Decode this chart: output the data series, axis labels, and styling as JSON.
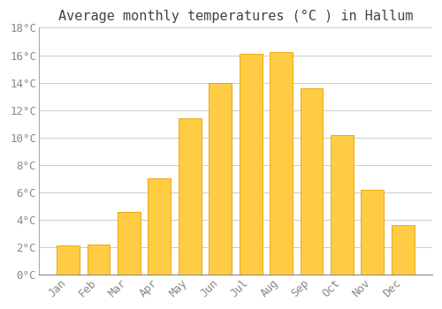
{
  "title": "Average monthly temperatures (°C ) in Hallum",
  "months": [
    "Jan",
    "Feb",
    "Mar",
    "Apr",
    "May",
    "Jun",
    "Jul",
    "Aug",
    "Sep",
    "Oct",
    "Nov",
    "Dec"
  ],
  "temperatures": [
    2.1,
    2.2,
    4.6,
    7.0,
    11.4,
    14.0,
    16.1,
    16.2,
    13.6,
    10.2,
    6.2,
    3.6
  ],
  "bar_color_light": "#FFCC44",
  "bar_color_dark": "#E8A000",
  "background_color": "#FFFFFF",
  "plot_bg_color": "#FFFFFF",
  "grid_color": "#CCCCCC",
  "tick_label_color": "#888888",
  "title_color": "#444444",
  "ylim": [
    0,
    18
  ],
  "yticks": [
    0,
    2,
    4,
    6,
    8,
    10,
    12,
    14,
    16,
    18
  ],
  "ytick_labels": [
    "0°C",
    "2°C",
    "4°C",
    "6°C",
    "8°C",
    "10°C",
    "12°C",
    "14°C",
    "16°C",
    "18°C"
  ],
  "bar_width": 0.75,
  "title_fontsize": 11,
  "tick_fontsize": 9
}
